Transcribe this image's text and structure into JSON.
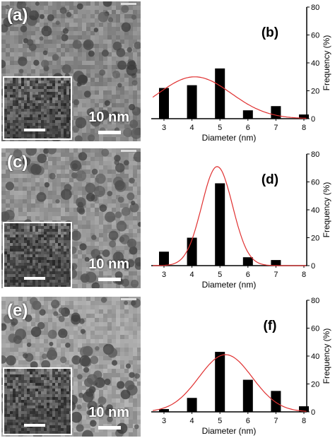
{
  "panels": [
    {
      "label": "(a)",
      "scale": "10 nm",
      "texture": "dark"
    },
    {
      "label": "(c)",
      "scale": "10 nm",
      "texture": "mid"
    },
    {
      "label": "(e)",
      "scale": "10 nm",
      "texture": "light"
    }
  ],
  "colors": {
    "bars": "#000000",
    "fit": "#e03030",
    "axis": "#000000"
  },
  "chart_data": [
    {
      "type": "bar",
      "panel_label": "(b)",
      "categories": [
        "3",
        "4",
        "5",
        "6",
        "7",
        "8"
      ],
      "values": [
        22,
        24,
        36,
        6,
        9,
        3
      ],
      "fit_curve": {
        "type": "gaussian",
        "peak_x": 4.1,
        "peak_y": 30
      },
      "xlabel": "Diameter (nm)",
      "ylabel": "Frequency (%)",
      "ylim": [
        0,
        80
      ],
      "yticks": [
        "0",
        "20",
        "40",
        "60",
        "80"
      ]
    },
    {
      "type": "bar",
      "panel_label": "(d)",
      "categories": [
        "3",
        "4",
        "5",
        "6",
        "7",
        "8"
      ],
      "values": [
        10,
        20,
        59,
        6,
        4,
        0
      ],
      "fit_curve": {
        "type": "gaussian",
        "peak_x": 4.9,
        "peak_y": 71
      },
      "xlabel": "Diameter (nm)",
      "ylabel": "Frequency (%)",
      "ylim": [
        0,
        80
      ],
      "yticks": [
        "0",
        "20",
        "40",
        "60",
        "80"
      ]
    },
    {
      "type": "bar",
      "panel_label": "(f)",
      "categories": [
        "3",
        "4",
        "5",
        "6",
        "7",
        "8"
      ],
      "values": [
        2,
        10,
        43,
        23,
        15,
        4
      ],
      "fit_curve": {
        "type": "gaussian",
        "peak_x": 5.2,
        "peak_y": 41
      },
      "xlabel": "Diameter (nm)",
      "ylabel": "Frequency (%)",
      "ylim": [
        0,
        80
      ],
      "yticks": [
        "0",
        "20",
        "40",
        "60",
        "80"
      ]
    }
  ]
}
